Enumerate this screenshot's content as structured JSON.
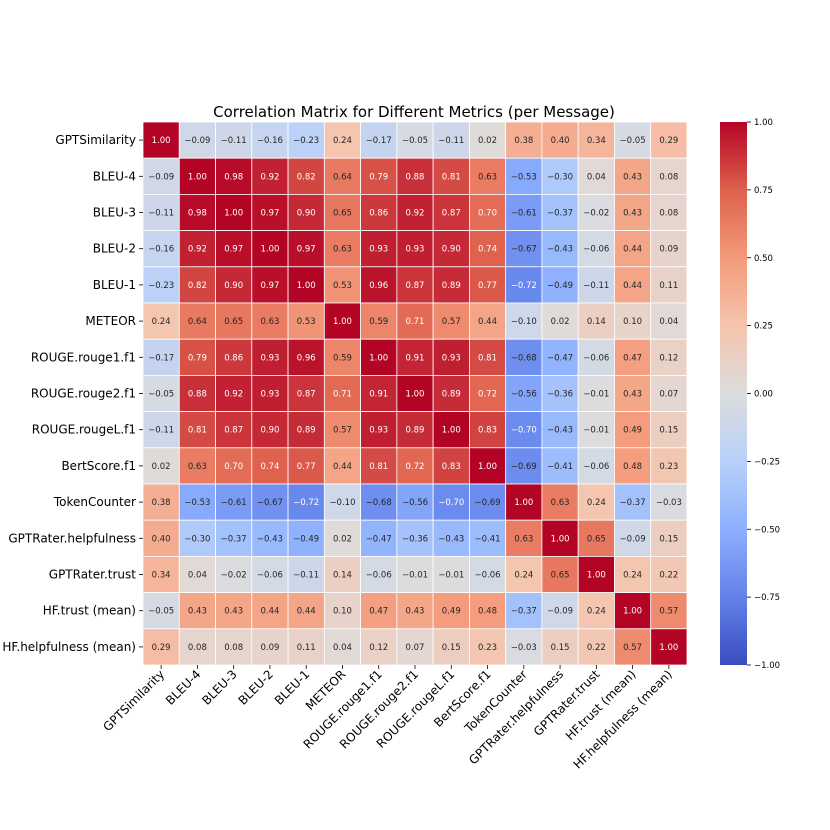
{
  "chart_data": {
    "type": "heatmap",
    "title": "Correlation Matrix for Different Metrics (per Message)",
    "xlabel": "",
    "ylabel": "",
    "colormap": "coolwarm",
    "vmin": -1.0,
    "vmax": 1.0,
    "colorbar_ticks": [
      "1.00",
      "0.75",
      "0.50",
      "0.25",
      "0.00",
      "−0.25",
      "−0.50",
      "−0.75",
      "−1.00"
    ],
    "colorbar_tick_values": [
      1.0,
      0.75,
      0.5,
      0.25,
      0.0,
      -0.25,
      -0.5,
      -0.75,
      -1.0
    ],
    "labels": [
      "GPTSimilarity",
      "BLEU-4",
      "BLEU-3",
      "BLEU-2",
      "BLEU-1",
      "METEOR",
      "ROUGE.rouge1.f1",
      "ROUGE.rouge2.f1",
      "ROUGE.rougeL.f1",
      "BertScore.f1",
      "TokenCounter",
      "GPTRater.helpfulness",
      "GPTRater.trust",
      "HF.trust (mean)",
      "HF.helpfulness (mean)"
    ],
    "matrix": [
      [
        1.0,
        -0.09,
        -0.11,
        -0.16,
        -0.23,
        0.24,
        -0.17,
        -0.05,
        -0.11,
        0.02,
        0.38,
        0.4,
        0.34,
        -0.05,
        0.29
      ],
      [
        -0.09,
        1.0,
        0.98,
        0.92,
        0.82,
        0.64,
        0.79,
        0.88,
        0.81,
        0.63,
        -0.53,
        -0.3,
        0.04,
        0.43,
        0.08
      ],
      [
        -0.11,
        0.98,
        1.0,
        0.97,
        0.9,
        0.65,
        0.86,
        0.92,
        0.87,
        0.7,
        -0.61,
        -0.37,
        -0.02,
        0.43,
        0.08
      ],
      [
        -0.16,
        0.92,
        0.97,
        1.0,
        0.97,
        0.63,
        0.93,
        0.93,
        0.9,
        0.74,
        -0.67,
        -0.43,
        -0.06,
        0.44,
        0.09
      ],
      [
        -0.23,
        0.82,
        0.9,
        0.97,
        1.0,
        0.53,
        0.96,
        0.87,
        0.89,
        0.77,
        -0.72,
        -0.49,
        -0.11,
        0.44,
        0.11
      ],
      [
        0.24,
        0.64,
        0.65,
        0.63,
        0.53,
        1.0,
        0.59,
        0.71,
        0.57,
        0.44,
        -0.1,
        0.02,
        0.14,
        0.1,
        0.04
      ],
      [
        -0.17,
        0.79,
        0.86,
        0.93,
        0.96,
        0.59,
        1.0,
        0.91,
        0.93,
        0.81,
        -0.68,
        -0.47,
        -0.06,
        0.47,
        0.12
      ],
      [
        -0.05,
        0.88,
        0.92,
        0.93,
        0.87,
        0.71,
        0.91,
        1.0,
        0.89,
        0.72,
        -0.56,
        -0.36,
        -0.01,
        0.43,
        0.07
      ],
      [
        -0.11,
        0.81,
        0.87,
        0.9,
        0.89,
        0.57,
        0.93,
        0.89,
        1.0,
        0.83,
        -0.7,
        -0.43,
        -0.01,
        0.49,
        0.15
      ],
      [
        0.02,
        0.63,
        0.7,
        0.74,
        0.77,
        0.44,
        0.81,
        0.72,
        0.83,
        1.0,
        -0.69,
        -0.41,
        -0.06,
        0.48,
        0.23
      ],
      [
        0.38,
        -0.53,
        -0.61,
        -0.67,
        -0.72,
        -0.1,
        -0.68,
        -0.56,
        -0.7,
        -0.69,
        1.0,
        0.63,
        0.24,
        -0.37,
        -0.03
      ],
      [
        0.4,
        -0.3,
        -0.37,
        -0.43,
        -0.49,
        0.02,
        -0.47,
        -0.36,
        -0.43,
        -0.41,
        0.63,
        1.0,
        0.65,
        -0.09,
        0.15
      ],
      [
        0.34,
        0.04,
        -0.02,
        -0.06,
        -0.11,
        0.14,
        -0.06,
        -0.01,
        -0.01,
        -0.06,
        0.24,
        0.65,
        1.0,
        0.24,
        0.22
      ],
      [
        -0.05,
        0.43,
        0.43,
        0.44,
        0.44,
        0.1,
        0.47,
        0.43,
        0.49,
        0.48,
        -0.37,
        -0.09,
        0.24,
        1.0,
        0.57
      ],
      [
        0.29,
        0.08,
        0.08,
        0.09,
        0.11,
        0.04,
        0.12,
        0.07,
        0.15,
        0.23,
        -0.03,
        0.15,
        0.22,
        0.57,
        1.0
      ]
    ]
  }
}
